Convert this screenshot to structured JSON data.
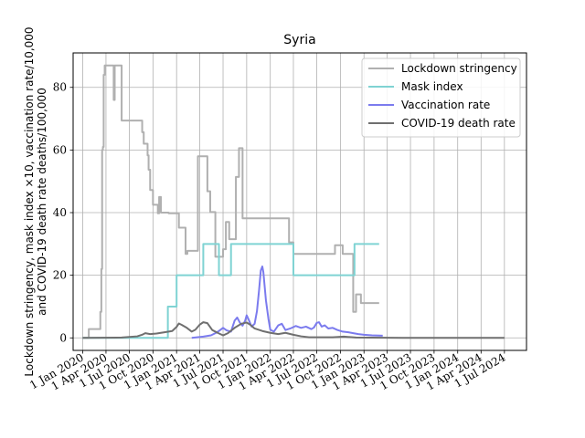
{
  "chart_data": {
    "type": "line",
    "title": "Syria",
    "ylabel_line1": "Lockdown stringency, mask index ×10, vaccination rate/10,000",
    "ylabel_line2": "and COVID-19 death rate deaths/100,000",
    "ylim": [
      -4,
      91
    ],
    "yticks": [
      0,
      20,
      40,
      60,
      80
    ],
    "xlim": [
      "2019-11-25",
      "2024-09-25"
    ],
    "xticks": [
      "2020-01-01",
      "2020-04-01",
      "2020-07-01",
      "2020-10-01",
      "2021-01-01",
      "2021-04-01",
      "2021-07-01",
      "2021-10-01",
      "2022-01-01",
      "2022-04-01",
      "2022-07-01",
      "2022-10-01",
      "2023-01-01",
      "2023-04-01",
      "2023-07-01",
      "2023-10-01",
      "2024-01-01",
      "2024-04-01",
      "2024-07-01"
    ],
    "xtick_labels": [
      "1 Jan 2020",
      "1 Apr 2020",
      "1 Jul 2020",
      "1 Oct 2020",
      "1 Jan 2021",
      "1 Apr 2021",
      "1 Jul 2021",
      "1 Oct 2021",
      "1 Jan 2022",
      "1 Apr 2022",
      "1 Jul 2022",
      "1 Oct 2022",
      "1 Jan 2023",
      "1 Apr 2023",
      "1 Jul 2023",
      "1 Oct 2023",
      "1 Jan 2024",
      "1 Apr 2024",
      "1 Jul 2024"
    ],
    "grid": true,
    "legend_position": "top-right",
    "series": [
      {
        "name": "Lockdown stringency",
        "color": "#b0b0b0",
        "step": true,
        "points": [
          [
            "2020-01-01",
            0
          ],
          [
            "2020-01-25",
            2.8
          ],
          [
            "2020-03-01",
            2.8
          ],
          [
            "2020-03-10",
            8.3
          ],
          [
            "2020-03-14",
            22
          ],
          [
            "2020-03-17",
            60
          ],
          [
            "2020-03-20",
            61
          ],
          [
            "2020-03-23",
            84
          ],
          [
            "2020-03-27",
            87
          ],
          [
            "2020-05-01",
            76
          ],
          [
            "2020-05-05",
            87
          ],
          [
            "2020-06-01",
            69.4
          ],
          [
            "2020-08-15",
            69.4
          ],
          [
            "2020-08-20",
            65.7
          ],
          [
            "2020-08-26",
            62
          ],
          [
            "2020-09-10",
            58.3
          ],
          [
            "2020-09-14",
            53.7
          ],
          [
            "2020-09-20",
            47.2
          ],
          [
            "2020-10-01",
            42.5
          ],
          [
            "2020-10-20",
            39.8
          ],
          [
            "2020-10-25",
            45
          ],
          [
            "2020-11-01",
            40
          ],
          [
            "2020-12-01",
            39.8
          ],
          [
            "2021-01-10",
            35.2
          ],
          [
            "2021-02-05",
            26.8
          ],
          [
            "2021-02-12",
            27.8
          ],
          [
            "2021-03-01",
            27.8
          ],
          [
            "2021-03-25",
            58
          ],
          [
            "2021-05-01",
            46.8
          ],
          [
            "2021-05-12",
            40.2
          ],
          [
            "2021-06-01",
            25.9
          ],
          [
            "2021-07-01",
            28.3
          ],
          [
            "2021-07-12",
            37
          ],
          [
            "2021-07-25",
            31.5
          ],
          [
            "2021-08-20",
            51.4
          ],
          [
            "2021-09-01",
            60.6
          ],
          [
            "2021-09-15",
            38.2
          ],
          [
            "2022-01-15",
            38.2
          ],
          [
            "2022-03-15",
            30.5
          ],
          [
            "2022-04-01",
            26.8
          ],
          [
            "2022-08-01",
            26.8
          ],
          [
            "2022-09-10",
            29.6
          ],
          [
            "2022-10-10",
            26.8
          ],
          [
            "2022-11-20",
            8.3
          ],
          [
            "2022-12-01",
            13.9
          ],
          [
            "2022-12-20",
            11.1
          ],
          [
            "2023-03-01",
            11.1
          ]
        ]
      },
      {
        "name": "Mask index",
        "color": "#7fd3d3",
        "step": true,
        "points": [
          [
            "2020-01-01",
            0
          ],
          [
            "2020-11-28",
            10
          ],
          [
            "2021-01-01",
            20
          ],
          [
            "2021-04-15",
            30
          ],
          [
            "2021-06-15",
            20
          ],
          [
            "2021-08-01",
            30
          ],
          [
            "2022-04-01",
            20
          ],
          [
            "2022-11-25",
            30
          ],
          [
            "2023-03-01",
            30
          ]
        ]
      },
      {
        "name": "Vaccination rate",
        "color": "#7b7bee",
        "step": false,
        "points": [
          [
            "2021-03-01",
            0
          ],
          [
            "2021-04-15",
            0.4
          ],
          [
            "2021-05-15",
            0.8
          ],
          [
            "2021-06-01",
            1.5
          ],
          [
            "2021-06-15",
            2.2
          ],
          [
            "2021-07-01",
            3.2
          ],
          [
            "2021-07-15",
            2.4
          ],
          [
            "2021-08-01",
            2.0
          ],
          [
            "2021-08-15",
            5.5
          ],
          [
            "2021-08-25",
            6.5
          ],
          [
            "2021-09-05",
            4.8
          ],
          [
            "2021-09-15",
            3.9
          ],
          [
            "2021-09-25",
            5.5
          ],
          [
            "2021-10-01",
            7.2
          ],
          [
            "2021-10-10",
            5.6
          ],
          [
            "2021-10-20",
            3.6
          ],
          [
            "2021-11-01",
            4.5
          ],
          [
            "2021-11-10",
            8.5
          ],
          [
            "2021-11-18",
            15
          ],
          [
            "2021-11-25",
            21.5
          ],
          [
            "2021-12-01",
            22.8
          ],
          [
            "2021-12-05",
            21.0
          ],
          [
            "2021-12-15",
            12
          ],
          [
            "2021-12-25",
            6
          ],
          [
            "2022-01-01",
            2.6
          ],
          [
            "2022-01-15",
            2.0
          ],
          [
            "2022-02-01",
            4.0
          ],
          [
            "2022-02-15",
            4.5
          ],
          [
            "2022-03-01",
            2.5
          ],
          [
            "2022-03-20",
            3.0
          ],
          [
            "2022-04-10",
            3.8
          ],
          [
            "2022-05-01",
            3.2
          ],
          [
            "2022-05-20",
            3.6
          ],
          [
            "2022-06-10",
            2.8
          ],
          [
            "2022-06-20",
            3.3
          ],
          [
            "2022-07-01",
            4.8
          ],
          [
            "2022-07-10",
            5.0
          ],
          [
            "2022-07-20",
            3.6
          ],
          [
            "2022-08-01",
            4.0
          ],
          [
            "2022-08-15",
            3.0
          ],
          [
            "2022-09-01",
            3.2
          ],
          [
            "2022-09-20",
            2.5
          ],
          [
            "2022-10-10",
            2.0
          ],
          [
            "2022-11-01",
            1.8
          ],
          [
            "2022-11-20",
            1.5
          ],
          [
            "2022-12-10",
            1.2
          ],
          [
            "2023-01-01",
            1.0
          ],
          [
            "2023-02-01",
            0.8
          ],
          [
            "2023-03-15",
            0.7
          ]
        ]
      },
      {
        "name": "COVID-19 death rate",
        "color": "#6f6f6f",
        "step": false,
        "points": [
          [
            "2020-01-01",
            0
          ],
          [
            "2020-06-01",
            0.1
          ],
          [
            "2020-08-01",
            0.5
          ],
          [
            "2020-08-20",
            1.0
          ],
          [
            "2020-09-01",
            1.5
          ],
          [
            "2020-09-20",
            1.2
          ],
          [
            "2020-10-15",
            1.4
          ],
          [
            "2020-11-15",
            1.8
          ],
          [
            "2020-12-15",
            2.2
          ],
          [
            "2021-01-01",
            3.5
          ],
          [
            "2021-01-10",
            4.6
          ],
          [
            "2021-01-20",
            4.2
          ],
          [
            "2021-02-10",
            3.2
          ],
          [
            "2021-03-01",
            2.0
          ],
          [
            "2021-03-15",
            2.6
          ],
          [
            "2021-04-01",
            4.2
          ],
          [
            "2021-04-15",
            5.0
          ],
          [
            "2021-05-01",
            4.7
          ],
          [
            "2021-05-20",
            2.5
          ],
          [
            "2021-06-10",
            1.6
          ],
          [
            "2021-07-01",
            0.8
          ],
          [
            "2021-07-20",
            1.5
          ],
          [
            "2021-08-15",
            3.2
          ],
          [
            "2021-09-10",
            4.5
          ],
          [
            "2021-10-01",
            4.9
          ],
          [
            "2021-10-15",
            4.2
          ],
          [
            "2021-11-01",
            3.0
          ],
          [
            "2021-12-01",
            2.2
          ],
          [
            "2022-01-01",
            1.6
          ],
          [
            "2022-02-01",
            1.2
          ],
          [
            "2022-03-01",
            1.6
          ],
          [
            "2022-04-01",
            1.0
          ],
          [
            "2022-05-01",
            0.5
          ],
          [
            "2022-06-01",
            0.2
          ],
          [
            "2022-09-01",
            0.2
          ],
          [
            "2022-10-15",
            0.4
          ],
          [
            "2022-12-01",
            0.1
          ],
          [
            "2023-06-01",
            0
          ],
          [
            "2024-07-01",
            0
          ]
        ]
      }
    ]
  }
}
